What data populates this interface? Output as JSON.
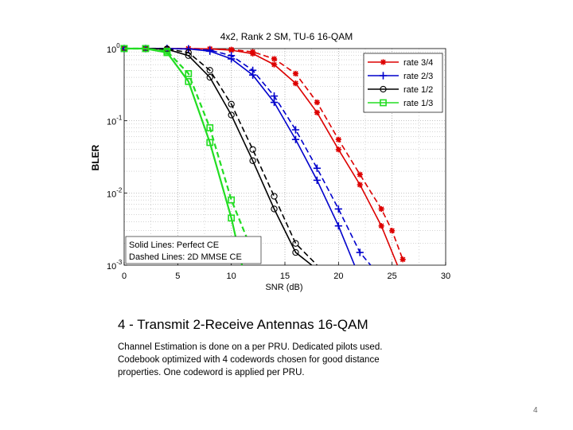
{
  "chart_data": {
    "type": "line",
    "title": "4x2, Rank 2 SM, TU-6 16-QAM",
    "xlabel": "SNR (dB)",
    "ylabel": "BLER",
    "xlim": [
      0,
      30
    ],
    "ylim": [
      0.001,
      1
    ],
    "yscale": "log",
    "xticks": [
      "0",
      "5",
      "10",
      "15",
      "20",
      "25",
      "30"
    ],
    "yticks": [
      {
        "value": 1,
        "base": "10",
        "exp": "0"
      },
      {
        "value": 0.1,
        "base": "10",
        "exp": "-1"
      },
      {
        "value": 0.01,
        "base": "10",
        "exp": "-2"
      },
      {
        "value": 0.001,
        "base": "10",
        "exp": "-3"
      }
    ],
    "grid": true,
    "legend_position": "top-right",
    "notes": [
      "Solid Lines: Perfect CE",
      "Dashed Lines: 2D MMSE CE"
    ],
    "series": [
      {
        "name": "rate 3/4",
        "color": "#dd0000",
        "marker": "star",
        "style": "solid",
        "x": [
          0,
          2,
          4,
          6,
          8,
          10,
          12,
          14,
          16,
          18,
          20,
          22,
          24,
          25.5
        ],
        "y": [
          1,
          1,
          1,
          1,
          0.99,
          0.95,
          0.85,
          0.6,
          0.33,
          0.13,
          0.04,
          0.013,
          0.0035,
          0.001
        ]
      },
      {
        "name": "rate 3/4",
        "color": "#dd0000",
        "marker": "star",
        "style": "dashed",
        "x": [
          0,
          2,
          4,
          6,
          8,
          10,
          12,
          14,
          16,
          18,
          20,
          22,
          24,
          25,
          26
        ],
        "y": [
          1,
          1,
          1,
          1,
          0.99,
          0.97,
          0.9,
          0.72,
          0.45,
          0.18,
          0.055,
          0.018,
          0.006,
          0.003,
          0.0012
        ]
      },
      {
        "name": "rate 2/3",
        "color": "#0000cc",
        "marker": "plus",
        "style": "solid",
        "x": [
          0,
          2,
          4,
          6,
          8,
          10,
          12,
          14,
          16,
          18,
          20,
          21.5
        ],
        "y": [
          1,
          1,
          1,
          0.99,
          0.92,
          0.72,
          0.43,
          0.18,
          0.055,
          0.015,
          0.0035,
          0.001
        ]
      },
      {
        "name": "rate 2/3",
        "color": "#0000cc",
        "marker": "plus",
        "style": "dashed",
        "x": [
          0,
          2,
          4,
          6,
          8,
          10,
          12,
          14,
          16,
          18,
          20,
          22,
          23
        ],
        "y": [
          1,
          1,
          1,
          0.99,
          0.95,
          0.8,
          0.5,
          0.22,
          0.075,
          0.022,
          0.006,
          0.0015,
          0.001
        ]
      },
      {
        "name": "rate 1/2",
        "color": "#000000",
        "marker": "circle",
        "style": "solid",
        "x": [
          0,
          2,
          4,
          6,
          8,
          10,
          12,
          14,
          16,
          17.5
        ],
        "y": [
          1,
          1,
          0.98,
          0.8,
          0.4,
          0.12,
          0.028,
          0.006,
          0.0015,
          0.001
        ]
      },
      {
        "name": "rate 1/2",
        "color": "#000000",
        "marker": "circle",
        "style": "dashed",
        "x": [
          0,
          2,
          4,
          6,
          8,
          10,
          12,
          14,
          16,
          18
        ],
        "y": [
          1,
          1,
          0.99,
          0.88,
          0.5,
          0.17,
          0.04,
          0.009,
          0.002,
          0.001
        ]
      },
      {
        "name": "rate 1/3",
        "color": "#22dd22",
        "marker": "square",
        "style": "solid",
        "x": [
          0,
          2,
          4,
          6,
          8,
          10,
          11
        ],
        "y": [
          1,
          1,
          0.88,
          0.35,
          0.05,
          0.0045,
          0.001
        ]
      },
      {
        "name": "rate 1/3",
        "color": "#22dd22",
        "marker": "square",
        "style": "dashed",
        "x": [
          0,
          2,
          4,
          6,
          8,
          10,
          12
        ],
        "y": [
          1,
          1,
          0.92,
          0.45,
          0.08,
          0.008,
          0.0015
        ]
      }
    ],
    "legend": [
      {
        "label": "rate 3/4",
        "color": "#dd0000",
        "marker": "star"
      },
      {
        "label": "rate 2/3",
        "color": "#0000cc",
        "marker": "plus"
      },
      {
        "label": "rate 1/2",
        "color": "#000000",
        "marker": "circle"
      },
      {
        "label": "rate 1/3",
        "color": "#22dd22",
        "marker": "square"
      }
    ]
  },
  "caption": {
    "title": "4 - Transmit 2-Receive Antennas 16-QAM",
    "lines": [
      "Channel Estimation is done on a per PRU.  Dedicated pilots used.",
      "Codebook optimized with 4  codewords chosen for good distance",
      "properties.   One codeword is applied per PRU."
    ]
  },
  "page_number": "4"
}
